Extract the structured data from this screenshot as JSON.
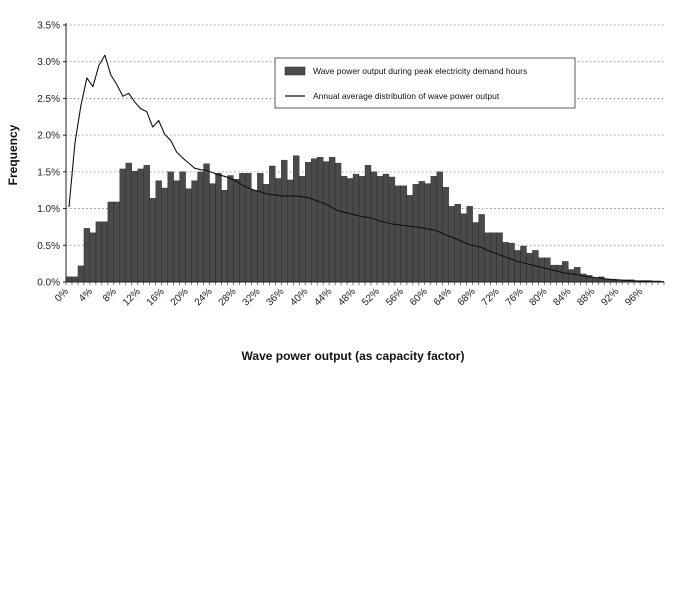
{
  "chart_data": {
    "type": "bar",
    "title": "",
    "xlabel": "Wave power output (as capacity factor)",
    "ylabel": "Frequency",
    "ylim": [
      0,
      0.035
    ],
    "yticks": [
      {
        "value": 0.0,
        "label": "0.0%"
      },
      {
        "value": 0.005,
        "label": "0.5%"
      },
      {
        "value": 0.01,
        "label": "1.0%"
      },
      {
        "value": 0.015,
        "label": "1.5%"
      },
      {
        "value": 0.02,
        "label": "2.0%"
      },
      {
        "value": 0.025,
        "label": "2.5%"
      },
      {
        "value": 0.03,
        "label": "3.0%"
      },
      {
        "value": 0.035,
        "label": "3.5%"
      }
    ],
    "xticks": [
      {
        "value": 0,
        "label": "0%"
      },
      {
        "value": 4,
        "label": "4%"
      },
      {
        "value": 8,
        "label": "8%"
      },
      {
        "value": 12,
        "label": "12%"
      },
      {
        "value": 16,
        "label": "16%"
      },
      {
        "value": 20,
        "label": "20%"
      },
      {
        "value": 24,
        "label": "24%"
      },
      {
        "value": 28,
        "label": "28%"
      },
      {
        "value": 32,
        "label": "32%"
      },
      {
        "value": 36,
        "label": "36%"
      },
      {
        "value": 40,
        "label": "40%"
      },
      {
        "value": 44,
        "label": "44%"
      },
      {
        "value": 48,
        "label": "48%"
      },
      {
        "value": 52,
        "label": "52%"
      },
      {
        "value": 56,
        "label": "56%"
      },
      {
        "value": 60,
        "label": "60%"
      },
      {
        "value": 64,
        "label": "64%"
      },
      {
        "value": 68,
        "label": "68%"
      },
      {
        "value": 72,
        "label": "72%"
      },
      {
        "value": 76,
        "label": "76%"
      },
      {
        "value": 80,
        "label": "80%"
      },
      {
        "value": 84,
        "label": "84%"
      },
      {
        "value": 88,
        "label": "88%"
      },
      {
        "value": 92,
        "label": "92%"
      },
      {
        "value": 96,
        "label": "96%"
      }
    ],
    "grid": true,
    "legend_position": "top-right",
    "x": [
      0,
      1,
      2,
      3,
      4,
      5,
      6,
      7,
      8,
      9,
      10,
      11,
      12,
      13,
      14,
      15,
      16,
      17,
      18,
      19,
      20,
      21,
      22,
      23,
      24,
      25,
      26,
      27,
      28,
      29,
      30,
      31,
      32,
      33,
      34,
      35,
      36,
      37,
      38,
      39,
      40,
      41,
      42,
      43,
      44,
      45,
      46,
      47,
      48,
      49,
      50,
      51,
      52,
      53,
      54,
      55,
      56,
      57,
      58,
      59,
      60,
      61,
      62,
      63,
      64,
      65,
      66,
      67,
      68,
      69,
      70,
      71,
      72,
      73,
      74,
      75,
      76,
      77,
      78,
      79,
      80,
      81,
      82,
      83,
      84,
      85,
      86,
      87,
      88,
      89,
      90,
      91,
      92,
      93,
      94,
      95,
      96,
      97,
      98,
      99
    ],
    "series": [
      {
        "name": "Wave power output during peak electricity demand hours",
        "kind": "bar",
        "color": "#4a4a4a",
        "values": [
          0.0007,
          0.0007,
          0.0022,
          0.0073,
          0.0067,
          0.0082,
          0.0082,
          0.0109,
          0.0109,
          0.0154,
          0.0162,
          0.0151,
          0.0154,
          0.0159,
          0.0114,
          0.0138,
          0.0128,
          0.015,
          0.0138,
          0.015,
          0.0127,
          0.0138,
          0.015,
          0.0161,
          0.0134,
          0.0148,
          0.0125,
          0.0145,
          0.014,
          0.0148,
          0.0148,
          0.0125,
          0.0148,
          0.0133,
          0.0158,
          0.0141,
          0.0166,
          0.0139,
          0.0172,
          0.0144,
          0.0163,
          0.0168,
          0.017,
          0.0164,
          0.017,
          0.0162,
          0.0144,
          0.0141,
          0.0147,
          0.0144,
          0.0159,
          0.015,
          0.0144,
          0.0147,
          0.0143,
          0.0131,
          0.0131,
          0.0118,
          0.0133,
          0.0137,
          0.0134,
          0.0144,
          0.015,
          0.0129,
          0.0103,
          0.0106,
          0.0093,
          0.0103,
          0.0081,
          0.0092,
          0.0067,
          0.0067,
          0.0067,
          0.0054,
          0.0053,
          0.0043,
          0.0049,
          0.0039,
          0.0043,
          0.0033,
          0.0033,
          0.0023,
          0.0023,
          0.0028,
          0.0017,
          0.002,
          0.0011,
          0.0009,
          0.0005,
          0.0007,
          0.0004,
          0.0004,
          0.0003,
          0.0003,
          0.0003,
          0.0002,
          0.0002,
          0.0002,
          0.0001,
          0.0001
        ]
      },
      {
        "name": "Annual average distribution of wave power output",
        "kind": "line",
        "color": "#111111",
        "values": [
          0.0102,
          0.019,
          0.0241,
          0.0278,
          0.0266,
          0.0295,
          0.0309,
          0.0282,
          0.0269,
          0.0253,
          0.0257,
          0.0245,
          0.0236,
          0.0232,
          0.0211,
          0.022,
          0.0201,
          0.0193,
          0.0177,
          0.0169,
          0.0162,
          0.0155,
          0.0153,
          0.0152,
          0.0149,
          0.0146,
          0.0144,
          0.0141,
          0.0137,
          0.0132,
          0.0128,
          0.0125,
          0.0123,
          0.012,
          0.0119,
          0.0118,
          0.0117,
          0.0117,
          0.0117,
          0.0116,
          0.0115,
          0.0112,
          0.0109,
          0.0106,
          0.0101,
          0.0097,
          0.0095,
          0.0093,
          0.0091,
          0.0089,
          0.0088,
          0.0086,
          0.0083,
          0.0081,
          0.0079,
          0.0078,
          0.0077,
          0.0076,
          0.0075,
          0.0074,
          0.0072,
          0.0071,
          0.0068,
          0.0064,
          0.0061,
          0.0058,
          0.0054,
          0.0051,
          0.0049,
          0.0047,
          0.0043,
          0.004,
          0.0037,
          0.0034,
          0.0031,
          0.0028,
          0.0026,
          0.0024,
          0.0022,
          0.002,
          0.0018,
          0.0016,
          0.0014,
          0.0012,
          0.0011,
          0.001,
          0.0008,
          0.0007,
          0.0006,
          0.0005,
          0.0004,
          0.0003,
          0.0003,
          0.0002,
          0.0002,
          0.0001,
          0.0001,
          0.0001,
          0.0001,
          0.0001
        ]
      }
    ]
  }
}
